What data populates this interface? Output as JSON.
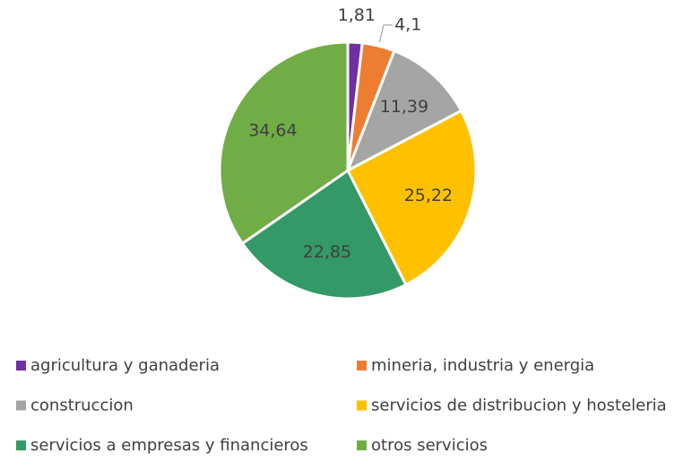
{
  "chart_data": {
    "type": "pie",
    "categories": [
      "agricultura y ganaderia",
      "mineria, industria y energia",
      "construccion",
      "servicios de distribucion y hosteleria",
      "servicios a empresas y financieros",
      "otros servicios"
    ],
    "values": [
      1.81,
      4.1,
      11.39,
      25.22,
      22.85,
      34.64
    ],
    "value_labels": [
      "1,81",
      "4,1",
      "11,39",
      "25,22",
      "22,85",
      "34,64"
    ],
    "colors": [
      "#7030a0",
      "#ed7d31",
      "#a5a5a5",
      "#ffc000",
      "#339966",
      "#70ad47"
    ],
    "legend": "bottom"
  }
}
